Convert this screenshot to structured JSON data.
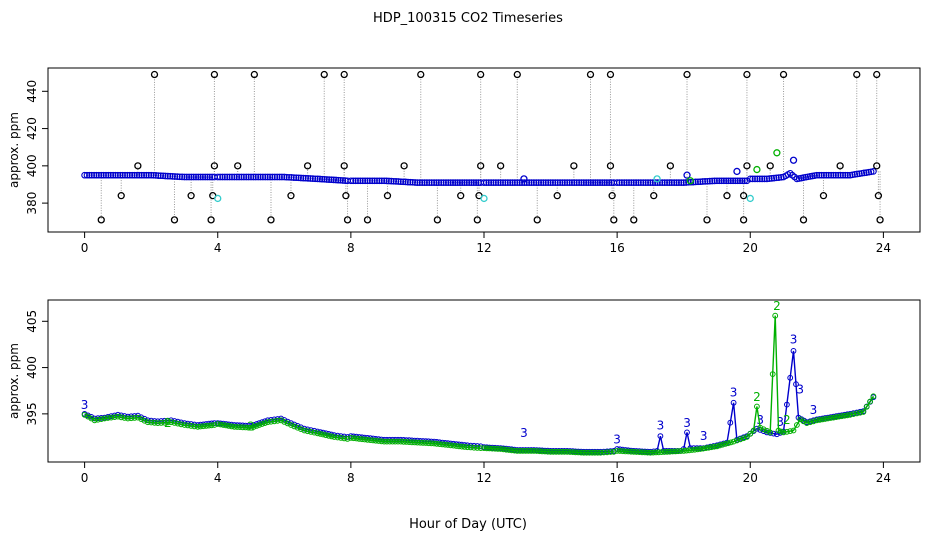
{
  "title": "HDP_100315  CO2 Timeseries",
  "xlabel": "Hour of Day (UTC)",
  "colors": {
    "black": "#000000",
    "blue": "#0000cc",
    "cyan": "#33cccc",
    "green": "#00b000",
    "grey": "#999999"
  },
  "chart_data": [
    {
      "type": "scatter",
      "title": "",
      "ylabel": "approx. ppm",
      "xlabel": "",
      "xlim": [
        -1.1,
        25.1
      ],
      "ylim": [
        364.5,
        452.5
      ],
      "xticks": [
        0,
        4,
        8,
        12,
        16,
        20,
        24
      ],
      "xtick_labels": [
        "0",
        "4",
        "8",
        "12",
        "16",
        "20",
        "24"
      ],
      "yticks": [
        380,
        400,
        420,
        440
      ],
      "ytick_labels": [
        "380",
        "400",
        "420",
        "440"
      ],
      "grid": false,
      "legend": "none",
      "baseline": {
        "color": "#0000cc",
        "breaks": [
          3.95,
          7.95,
          11.95,
          15.95,
          19.95
        ],
        "points": [
          [
            0,
            395
          ],
          [
            1,
            395
          ],
          [
            2,
            395
          ],
          [
            3,
            394
          ],
          [
            3.9,
            394
          ],
          [
            4,
            394
          ],
          [
            5,
            394
          ],
          [
            6,
            394
          ],
          [
            7,
            393
          ],
          [
            7.9,
            392
          ],
          [
            8,
            392
          ],
          [
            9,
            392
          ],
          [
            10,
            391
          ],
          [
            11,
            391
          ],
          [
            11.9,
            391
          ],
          [
            12,
            391
          ],
          [
            13,
            391
          ],
          [
            14,
            391
          ],
          [
            15,
            391
          ],
          [
            15.9,
            391
          ],
          [
            16,
            391
          ],
          [
            17,
            391
          ],
          [
            18,
            391
          ],
          [
            19,
            392
          ],
          [
            19.9,
            392
          ],
          [
            20,
            393
          ],
          [
            20.5,
            393
          ],
          [
            21,
            394
          ],
          [
            21.2,
            396
          ],
          [
            21.4,
            393
          ],
          [
            22,
            395
          ],
          [
            23,
            395
          ],
          [
            23.7,
            397
          ]
        ]
      },
      "outliers_black": [
        [
          2.1,
          449
        ],
        [
          3.9,
          449
        ],
        [
          5.1,
          449
        ],
        [
          7.2,
          449
        ],
        [
          7.8,
          449
        ],
        [
          10.1,
          449
        ],
        [
          11.9,
          449
        ],
        [
          13.0,
          449
        ],
        [
          15.2,
          449
        ],
        [
          15.8,
          449
        ],
        [
          18.1,
          449
        ],
        [
          19.9,
          449
        ],
        [
          21.0,
          449
        ],
        [
          23.2,
          449
        ],
        [
          23.8,
          449
        ],
        [
          0.5,
          371
        ],
        [
          2.7,
          371
        ],
        [
          3.8,
          371
        ],
        [
          5.6,
          371
        ],
        [
          7.9,
          371
        ],
        [
          8.5,
          371
        ],
        [
          10.6,
          371
        ],
        [
          11.8,
          371
        ],
        [
          13.6,
          371
        ],
        [
          15.9,
          371
        ],
        [
          16.5,
          371
        ],
        [
          18.7,
          371
        ],
        [
          19.8,
          371
        ],
        [
          21.6,
          371
        ],
        [
          23.9,
          371
        ],
        [
          1.1,
          384
        ],
        [
          3.2,
          384
        ],
        [
          3.85,
          384
        ],
        [
          6.2,
          384
        ],
        [
          7.85,
          384
        ],
        [
          9.1,
          384
        ],
        [
          11.3,
          384
        ],
        [
          11.85,
          384
        ],
        [
          14.2,
          384
        ],
        [
          15.85,
          384
        ],
        [
          17.1,
          384
        ],
        [
          19.3,
          384
        ],
        [
          19.8,
          384
        ],
        [
          22.2,
          384
        ],
        [
          23.85,
          384
        ],
        [
          1.6,
          400
        ],
        [
          3.9,
          400
        ],
        [
          4.6,
          400
        ],
        [
          6.7,
          400
        ],
        [
          7.8,
          400
        ],
        [
          9.6,
          400
        ],
        [
          11.9,
          400
        ],
        [
          12.5,
          400
        ],
        [
          14.7,
          400
        ],
        [
          15.8,
          400
        ],
        [
          17.6,
          400
        ],
        [
          19.9,
          400
        ],
        [
          20.6,
          400
        ],
        [
          22.7,
          400
        ],
        [
          23.8,
          400
        ]
      ],
      "outliers_blue": [
        [
          13.2,
          393
        ],
        [
          18.1,
          395
        ],
        [
          19.6,
          397
        ],
        [
          21.3,
          403
        ]
      ],
      "outliers_cyan": [
        [
          4.0,
          382.5
        ],
        [
          12.0,
          382.5
        ],
        [
          20.0,
          382.5
        ],
        [
          17.2,
          393
        ]
      ],
      "outliers_green": [
        [
          20.8,
          407
        ],
        [
          20.2,
          398
        ],
        [
          18.2,
          392
        ]
      ],
      "drop_lines": "grey dotted from baseline to each black outlier"
    },
    {
      "type": "line",
      "title": "",
      "ylabel": "approx. ppm",
      "xlabel": "",
      "xlim": [
        -1.1,
        25.1
      ],
      "ylim": [
        389.8,
        407.3
      ],
      "xticks": [
        0,
        4,
        8,
        12,
        16,
        20,
        24
      ],
      "xtick_labels": [
        "0",
        "4",
        "8",
        "12",
        "16",
        "20",
        "24"
      ],
      "yticks": [
        395,
        400,
        405
      ],
      "ytick_labels": [
        "395",
        "400",
        "405"
      ],
      "grid": false,
      "legend": "none",
      "breaks": [
        3.95,
        7.95,
        11.95,
        15.95
      ],
      "series": [
        {
          "color": "#0000cc",
          "points": [
            [
              0,
              395.0
            ],
            [
              0.3,
              394.5
            ],
            [
              0.6,
              394.6
            ],
            [
              1.0,
              394.9
            ],
            [
              1.3,
              394.7
            ],
            [
              1.6,
              394.8
            ],
            [
              1.9,
              394.3
            ],
            [
              2.2,
              394.2
            ],
            [
              2.6,
              394.3
            ],
            [
              3.0,
              394.0
            ],
            [
              3.4,
              393.8
            ],
            [
              3.9,
              394.0
            ],
            [
              4.0,
              394.0
            ],
            [
              4.5,
              393.8
            ],
            [
              5.0,
              393.7
            ],
            [
              5.5,
              394.3
            ],
            [
              5.9,
              394.5
            ],
            [
              6.2,
              394.0
            ],
            [
              6.6,
              393.4
            ],
            [
              7.0,
              393.1
            ],
            [
              7.5,
              392.7
            ],
            [
              7.9,
              392.5
            ],
            [
              8.0,
              392.6
            ],
            [
              8.5,
              392.4
            ],
            [
              9.0,
              392.2
            ],
            [
              9.5,
              392.2
            ],
            [
              10.0,
              392.1
            ],
            [
              10.5,
              392.0
            ],
            [
              11.0,
              391.8
            ],
            [
              11.5,
              391.6
            ],
            [
              11.9,
              391.5
            ],
            [
              12.0,
              391.4
            ],
            [
              12.5,
              391.3
            ],
            [
              13.0,
              391.1
            ],
            [
              13.5,
              391.1
            ],
            [
              14.0,
              391.0
            ],
            [
              14.5,
              391.0
            ],
            [
              15.0,
              390.9
            ],
            [
              15.5,
              390.9
            ],
            [
              15.9,
              391.0
            ],
            [
              16.0,
              391.2
            ],
            [
              16.5,
              391.0
            ],
            [
              17.0,
              390.9
            ],
            [
              17.2,
              391.0
            ],
            [
              17.3,
              392.6
            ],
            [
              17.4,
              391.0
            ],
            [
              17.9,
              391.0
            ],
            [
              18.0,
              391.2
            ],
            [
              18.1,
              393.0
            ],
            [
              18.2,
              391.3
            ],
            [
              18.6,
              391.3
            ],
            [
              19.0,
              391.6
            ],
            [
              19.3,
              391.9
            ],
            [
              19.5,
              396.2
            ],
            [
              19.6,
              392.2
            ],
            [
              19.9,
              392.6
            ],
            [
              20.2,
              393.4
            ],
            [
              20.5,
              393.0
            ],
            [
              20.8,
              392.8
            ],
            [
              21.0,
              393.1
            ],
            [
              21.3,
              401.8
            ],
            [
              21.45,
              394.6
            ],
            [
              21.7,
              394.1
            ],
            [
              22.0,
              394.4
            ],
            [
              22.5,
              394.7
            ],
            [
              23.0,
              395.0
            ],
            [
              23.4,
              395.3
            ],
            [
              23.7,
              396.8
            ]
          ],
          "labels": [
            [
              0,
              395.5,
              "3"
            ],
            [
              13.2,
              392.5,
              "3"
            ],
            [
              16.0,
              391.8,
              "3"
            ],
            [
              17.3,
              393.3,
              "3"
            ],
            [
              18.1,
              393.6,
              "3"
            ],
            [
              18.6,
              392.2,
              "3"
            ],
            [
              19.5,
              396.9,
              "3"
            ],
            [
              20.3,
              393.9,
              "3"
            ],
            [
              20.9,
              393.7,
              "3"
            ],
            [
              21.3,
              402.6,
              "3"
            ],
            [
              21.5,
              397.2,
              "3"
            ],
            [
              21.9,
              395.0,
              "3"
            ]
          ]
        },
        {
          "color": "#00b000",
          "points": [
            [
              0,
              394.9
            ],
            [
              0.3,
              394.3
            ],
            [
              0.6,
              394.5
            ],
            [
              1.0,
              394.7
            ],
            [
              1.3,
              394.5
            ],
            [
              1.6,
              394.6
            ],
            [
              1.9,
              394.1
            ],
            [
              2.2,
              394.0
            ],
            [
              2.6,
              394.1
            ],
            [
              3.0,
              393.8
            ],
            [
              3.4,
              393.6
            ],
            [
              3.9,
              393.8
            ],
            [
              4.0,
              393.9
            ],
            [
              4.5,
              393.6
            ],
            [
              5.0,
              393.5
            ],
            [
              5.5,
              394.1
            ],
            [
              5.9,
              394.3
            ],
            [
              6.2,
              393.8
            ],
            [
              6.6,
              393.2
            ],
            [
              7.0,
              392.9
            ],
            [
              7.5,
              392.5
            ],
            [
              7.9,
              392.3
            ],
            [
              8.0,
              392.4
            ],
            [
              8.5,
              392.2
            ],
            [
              9.0,
              392.0
            ],
            [
              9.5,
              392.0
            ],
            [
              10.0,
              391.9
            ],
            [
              10.5,
              391.8
            ],
            [
              11.0,
              391.6
            ],
            [
              11.5,
              391.4
            ],
            [
              11.9,
              391.3
            ],
            [
              12.0,
              391.3
            ],
            [
              12.5,
              391.2
            ],
            [
              13.0,
              391.0
            ],
            [
              13.5,
              391.0
            ],
            [
              14.0,
              390.9
            ],
            [
              14.5,
              390.9
            ],
            [
              15.0,
              390.8
            ],
            [
              15.5,
              390.8
            ],
            [
              15.9,
              390.9
            ],
            [
              16.0,
              391.0
            ],
            [
              16.5,
              390.9
            ],
            [
              17.0,
              390.8
            ],
            [
              17.5,
              390.9
            ],
            [
              18.0,
              391.0
            ],
            [
              18.5,
              391.2
            ],
            [
              19.0,
              391.5
            ],
            [
              19.5,
              392.0
            ],
            [
              19.9,
              392.5
            ],
            [
              20.1,
              393.2
            ],
            [
              20.2,
              395.8
            ],
            [
              20.3,
              393.5
            ],
            [
              20.6,
              393.0
            ],
            [
              20.75,
              405.6
            ],
            [
              20.85,
              393.2
            ],
            [
              21.0,
              393.0
            ],
            [
              21.3,
              393.2
            ],
            [
              21.5,
              394.4
            ],
            [
              21.7,
              394.0
            ],
            [
              22.0,
              394.3
            ],
            [
              22.5,
              394.6
            ],
            [
              23.0,
              394.9
            ],
            [
              23.4,
              395.2
            ],
            [
              23.7,
              396.9
            ]
          ],
          "labels": [
            [
              2.5,
              393.6,
              "2"
            ],
            [
              5.0,
              393.2,
              "2"
            ],
            [
              20.2,
              396.4,
              "2"
            ],
            [
              20.8,
              406.2,
              "2"
            ],
            [
              21.1,
              393.9,
              "2"
            ]
          ]
        }
      ]
    }
  ]
}
